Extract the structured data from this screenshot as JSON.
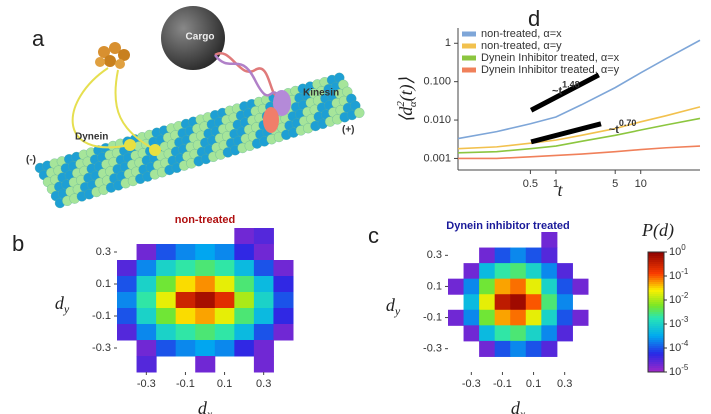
{
  "figure": {
    "panel_a": {
      "letter": "a",
      "cargo": "Cargo",
      "kinesin": "Kinesin",
      "dynein": "Dynein",
      "plus_end": "(+)",
      "minus_end": "(-)"
    },
    "letters": {
      "b": "b",
      "c": "c",
      "d": "d"
    }
  },
  "chart_data": [
    {
      "type": "line",
      "x_label": "t",
      "y_label": {
        "base": "⟨d",
        "sup": "2",
        "sub": "α",
        "tail": "(t)⟩"
      },
      "log_x": true,
      "log_y": true,
      "xlim": [
        0.07,
        50
      ],
      "ylim": [
        0.0005,
        2.5
      ],
      "xticks": [
        0.5,
        1,
        5,
        10
      ],
      "yticks": [
        0.001,
        {
          "value": 0.01,
          "label": "0.010"
        },
        {
          "value": 0.1,
          "label": "0.100"
        },
        1
      ],
      "legend": "upper left",
      "x": [
        0.07,
        0.2,
        0.5,
        1,
        2,
        5,
        10,
        20,
        50
      ],
      "series": [
        {
          "name": "non-treated, α=x",
          "color": "#7ea6d8",
          "values": [
            0.0033,
            0.005,
            0.008,
            0.012,
            0.025,
            0.07,
            0.17,
            0.4,
            1.2
          ]
        },
        {
          "name": "non-treated, α=y",
          "color": "#f2c14e",
          "values": [
            0.0018,
            0.002,
            0.0025,
            0.003,
            0.004,
            0.006,
            0.009,
            0.013,
            0.022
          ]
        },
        {
          "name": "Dynein Inhibitor treated, α=x",
          "color": "#8cc63f",
          "values": [
            0.0014,
            0.0015,
            0.0018,
            0.0021,
            0.0028,
            0.004,
            0.0055,
            0.0075,
            0.011
          ]
        },
        {
          "name": "Dynein Inhibitor treated, α=y",
          "color": "#f0805a",
          "values": [
            0.001,
            0.001,
            0.0011,
            0.0012,
            0.0013,
            0.0015,
            0.0017,
            0.0019,
            0.0021
          ]
        }
      ],
      "annotations": [
        {
          "base": "~t",
          "exponent": "1.48",
          "x": [
            0.51,
            3.2
          ],
          "y": [
            0.018,
            0.15
          ],
          "at": [
            0.9,
            0.055
          ]
        },
        {
          "base": "~t",
          "exponent": "0.70",
          "x": [
            0.51,
            3.4
          ],
          "y": [
            0.0027,
            0.008
          ],
          "at": [
            4.2,
            0.0055
          ]
        }
      ]
    },
    {
      "type": "heatmap",
      "title": "non-treated",
      "title_color": "#b01010",
      "x_label": {
        "base": "d",
        "sub": "x"
      },
      "y_label": {
        "base": "d",
        "sub": "y"
      },
      "xlim": [
        -0.45,
        0.45
      ],
      "ylim": [
        -0.45,
        0.45
      ],
      "xticks": [
        -0.3,
        -0.1,
        0.1,
        0.3
      ],
      "yticks": [
        -0.3,
        -0.1,
        0.1,
        0.3
      ],
      "x": [
        -0.4,
        -0.3,
        -0.2,
        -0.1,
        0,
        0.1,
        0.2,
        0.3,
        0.4
      ],
      "y": [
        0.4,
        0.3,
        0.2,
        0.1,
        0,
        -0.1,
        -0.2,
        -0.3,
        -0.4
      ],
      "z": [
        [
          null,
          null,
          null,
          null,
          null,
          null,
          2e-05,
          3e-05,
          null
        ],
        [
          null,
          2e-05,
          0.0001,
          0.0002,
          0.0003,
          0.0002,
          5e-05,
          2e-05,
          null
        ],
        [
          3e-05,
          0.0002,
          0.001,
          0.002,
          0.003,
          0.002,
          0.0005,
          0.0001,
          2e-05
        ],
        [
          0.0001,
          0.001,
          0.005,
          0.03,
          0.06,
          0.02,
          0.003,
          0.0005,
          5e-05
        ],
        [
          0.0002,
          0.002,
          0.02,
          0.3,
          0.6,
          0.2,
          0.01,
          0.001,
          0.0001
        ],
        [
          0.0001,
          0.001,
          0.005,
          0.03,
          0.05,
          0.02,
          0.003,
          0.0005,
          5e-05
        ],
        [
          3e-05,
          0.0002,
          0.001,
          0.002,
          0.003,
          0.002,
          0.0005,
          0.0001,
          2e-05
        ],
        [
          null,
          2e-05,
          0.0001,
          0.0002,
          0.0003,
          0.0002,
          5e-05,
          2e-05,
          null
        ],
        [
          null,
          3e-05,
          null,
          null,
          2e-05,
          null,
          null,
          2e-05,
          null
        ]
      ],
      "zlim": [
        1e-05,
        1
      ],
      "log_z": true
    },
    {
      "type": "heatmap",
      "title": "Dynein inhibitor treated",
      "title_color": "#1a1a9a",
      "x_label": {
        "base": "d",
        "sub": "x"
      },
      "y_label": {
        "base": "d",
        "sub": "y"
      },
      "xlim": [
        -0.45,
        0.45
      ],
      "ylim": [
        -0.45,
        0.45
      ],
      "xticks": [
        -0.3,
        -0.1,
        0.1,
        0.3
      ],
      "yticks": [
        -0.3,
        -0.1,
        0.1,
        0.3
      ],
      "x": [
        -0.4,
        -0.3,
        -0.2,
        -0.1,
        0,
        0.1,
        0.2,
        0.3,
        0.4
      ],
      "y": [
        0.4,
        0.3,
        0.2,
        0.1,
        0,
        -0.1,
        -0.2,
        -0.3,
        -0.4
      ],
      "z": [
        [
          null,
          null,
          null,
          null,
          null,
          null,
          2e-05,
          null,
          null
        ],
        [
          null,
          null,
          2e-05,
          0.0001,
          0.0002,
          0.0001,
          3e-05,
          null,
          null
        ],
        [
          null,
          2e-05,
          0.0005,
          0.002,
          0.003,
          0.001,
          0.0002,
          3e-05,
          null
        ],
        [
          2e-05,
          0.0002,
          0.005,
          0.05,
          0.08,
          0.02,
          0.001,
          0.0001,
          2e-05
        ],
        [
          null,
          0.0005,
          0.02,
          0.4,
          0.7,
          0.1,
          0.003,
          0.0002,
          null
        ],
        [
          2e-05,
          0.0002,
          0.005,
          0.05,
          0.08,
          0.02,
          0.001,
          0.0001,
          2e-05
        ],
        [
          null,
          2e-05,
          0.0005,
          0.002,
          0.003,
          0.001,
          0.0002,
          3e-05,
          null
        ],
        [
          null,
          null,
          2e-05,
          0.0001,
          0.0002,
          0.0001,
          3e-05,
          null,
          null
        ],
        [
          null,
          null,
          null,
          null,
          null,
          null,
          null,
          null,
          null
        ]
      ],
      "zlim": [
        1e-05,
        1
      ],
      "log_z": true,
      "colorbar": {
        "title": {
          "base": "P",
          "tail": "(d)"
        },
        "ticks": [
          {
            "value": 1,
            "label": "10",
            "exponent": "0"
          },
          {
            "value": 0.1,
            "label": "10",
            "exponent": "-1"
          },
          {
            "value": 0.01,
            "label": "10",
            "exponent": "-2"
          },
          {
            "value": 0.001,
            "label": "10",
            "exponent": "-3"
          },
          {
            "value": 0.0001,
            "label": "10",
            "exponent": "-4"
          },
          {
            "value": 1e-05,
            "label": "10",
            "exponent": "-5"
          }
        ]
      }
    }
  ]
}
